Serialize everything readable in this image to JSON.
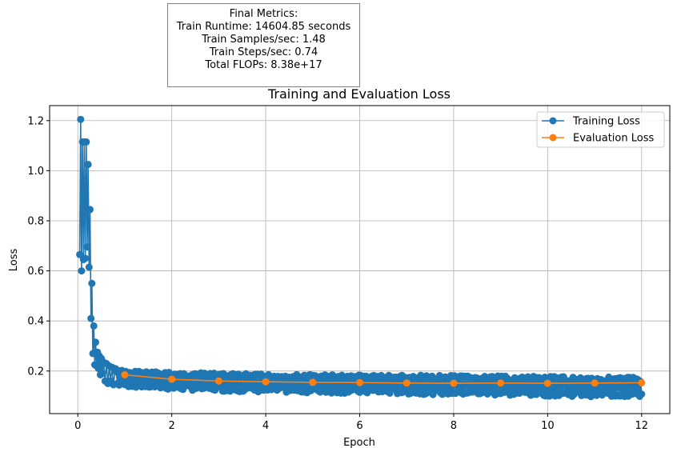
{
  "metrics": {
    "title": "Final Metrics:",
    "lines": [
      "Train Runtime: 14604.85 seconds",
      "Train Samples/sec: 1.48",
      "Train Steps/sec: 0.74",
      "Total FLOPs: 8.38e+17"
    ]
  },
  "chart_data": {
    "type": "line",
    "title": "Training and Evaluation Loss",
    "xlabel": "Epoch",
    "ylabel": "Loss",
    "xlim": [
      -0.6,
      12.6
    ],
    "ylim": [
      0.03,
      1.26
    ],
    "xticks": [
      0,
      2,
      4,
      6,
      8,
      10,
      12
    ],
    "yticks": [
      0.2,
      0.4,
      0.6,
      0.8,
      1.0,
      1.2
    ],
    "grid": true,
    "legend": "top-right",
    "series": [
      {
        "name": "Training Loss",
        "color": "#1f77b4",
        "note_pattern": "dense oscillation between lower and upper envelope after epoch 0.8",
        "x": [
          0.04,
          0.06,
          0.08,
          0.1,
          0.12,
          0.14,
          0.16,
          0.18,
          0.2,
          0.22,
          0.24,
          0.26,
          0.28,
          0.3,
          0.32,
          0.34,
          0.36,
          0.38,
          0.4,
          0.42,
          0.44,
          0.46,
          0.48,
          0.5,
          0.52,
          0.55,
          0.58,
          0.61,
          0.64,
          0.67,
          0.7,
          0.73,
          0.76,
          0.8
        ],
        "y": [
          0.665,
          1.205,
          0.6,
          1.115,
          0.645,
          1.115,
          0.65,
          1.115,
          0.695,
          1.025,
          0.615,
          0.845,
          0.41,
          0.55,
          0.27,
          0.38,
          0.225,
          0.315,
          0.22,
          0.275,
          0.21,
          0.26,
          0.185,
          0.25,
          0.19,
          0.235,
          0.16,
          0.23,
          0.15,
          0.22,
          0.16,
          0.215,
          0.145,
          0.21
        ],
        "band": {
          "x": [
            0.8,
            2,
            4,
            6,
            8,
            10,
            12
          ],
          "upper": [
            0.205,
            0.195,
            0.188,
            0.185,
            0.182,
            0.178,
            0.176
          ],
          "lower": [
            0.14,
            0.125,
            0.115,
            0.11,
            0.105,
            0.1,
            0.095
          ]
        }
      },
      {
        "name": "Evaluation Loss",
        "color": "#ff7f0e",
        "x": [
          1,
          2,
          3,
          4,
          5,
          6,
          7,
          8,
          9,
          10,
          11,
          12
        ],
        "y": [
          0.185,
          0.167,
          0.16,
          0.157,
          0.155,
          0.154,
          0.152,
          0.151,
          0.152,
          0.151,
          0.152,
          0.153
        ]
      }
    ]
  }
}
